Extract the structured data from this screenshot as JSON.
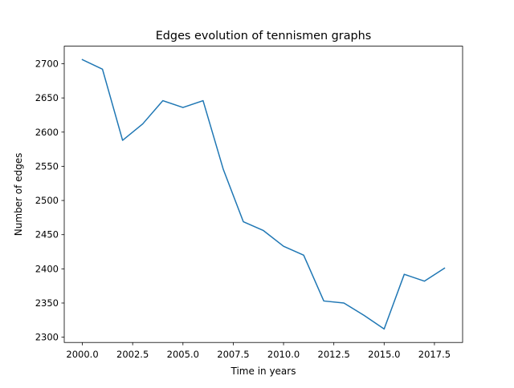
{
  "chart_data": {
    "type": "line",
    "title": "Edges evolution of tennismen graphs",
    "xlabel": "Time in years",
    "ylabel": "Number of edges",
    "x": [
      2000,
      2001,
      2002,
      2003,
      2004,
      2005,
      2006,
      2007,
      2008,
      2009,
      2010,
      2011,
      2012,
      2013,
      2014,
      2015,
      2016,
      2017,
      2018
    ],
    "series": [
      {
        "values": [
          2706,
          2692,
          2588,
          2612,
          2646,
          2636,
          2646,
          2546,
          2469,
          2456,
          2433,
          2420,
          2353,
          2350,
          2332,
          2312,
          2392,
          2382,
          2401
        ],
        "color": "#1f77b4"
      }
    ],
    "xlim": [
      1999.1,
      2018.9
    ],
    "ylim": [
      2292.3,
      2725.7
    ],
    "xticks": [
      2000,
      2002.5,
      2005,
      2007.5,
      2010,
      2012.5,
      2015,
      2017.5
    ],
    "xtick_labels": [
      "2000.0",
      "2002.5",
      "2005.0",
      "2007.5",
      "2010.0",
      "2012.5",
      "2015.0",
      "2017.5"
    ],
    "yticks": [
      2300,
      2350,
      2400,
      2450,
      2500,
      2550,
      2600,
      2650,
      2700
    ],
    "ytick_labels": [
      "2300",
      "2350",
      "2400",
      "2450",
      "2500",
      "2550",
      "2600",
      "2650",
      "2700"
    ],
    "grid": false,
    "legend": false
  }
}
